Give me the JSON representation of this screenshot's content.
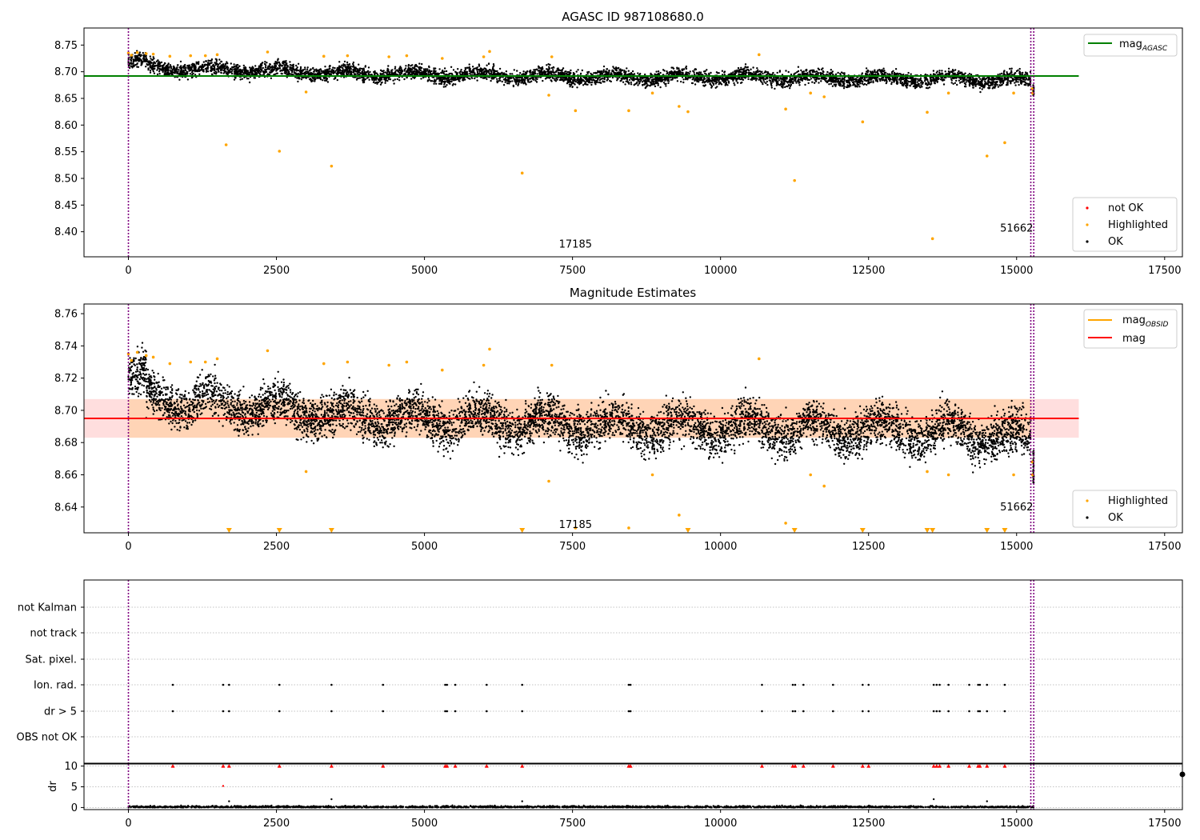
{
  "chart_data": [
    {
      "type": "scatter",
      "title": "AGASC ID 987108680.0",
      "xlabel": "",
      "ylabel": "",
      "xlim": [
        -750,
        17800
      ],
      "ylim": [
        8.353,
        8.782
      ],
      "xticks": [
        0,
        2500,
        5000,
        7500,
        10000,
        12500,
        15000,
        17500
      ],
      "xtick_labels": [
        "0",
        "2500",
        "5000",
        "7500",
        "10000",
        "12500",
        "15000",
        "17500"
      ],
      "yticks": [
        8.4,
        8.45,
        8.5,
        8.55,
        8.6,
        8.65,
        8.7,
        8.75
      ],
      "ytick_labels": [
        "8.40",
        "8.45",
        "8.50",
        "8.55",
        "8.60",
        "8.65",
        "8.70",
        "8.75"
      ],
      "vlines": [
        0,
        15240,
        15290
      ],
      "obsid_labels": [
        {
          "x": 7550,
          "y": 8.37,
          "text": "17185"
        },
        {
          "x": 15000,
          "y": 8.4,
          "text": "51662"
        }
      ],
      "mag_agasc": 8.692,
      "line_x_range": [
        -750,
        16050
      ],
      "ok_band": {
        "x": [
          0,
          2000,
          4000,
          6000,
          8000,
          10000,
          12000,
          14000,
          15240
        ],
        "center": [
          8.708,
          8.703,
          8.696,
          8.694,
          8.69,
          8.69,
          8.688,
          8.687,
          8.682
        ],
        "spread": [
          0.012,
          0.012,
          0.012,
          0.012,
          0.012,
          0.012,
          0.012,
          0.012,
          0.014
        ]
      },
      "highlighted": [
        [
          0,
          8.735
        ],
        [
          50,
          8.731
        ],
        [
          150,
          8.736
        ],
        [
          300,
          8.734
        ],
        [
          420,
          8.733
        ],
        [
          700,
          8.729
        ],
        [
          1050,
          8.73
        ],
        [
          1300,
          8.73
        ],
        [
          1500,
          8.732
        ],
        [
          1650,
          8.563
        ],
        [
          2350,
          8.737
        ],
        [
          2550,
          8.551
        ],
        [
          3000,
          8.662
        ],
        [
          3300,
          8.729
        ],
        [
          3430,
          8.523
        ],
        [
          3700,
          8.73
        ],
        [
          4400,
          8.728
        ],
        [
          4700,
          8.73
        ],
        [
          5300,
          8.725
        ],
        [
          6000,
          8.728
        ],
        [
          6100,
          8.738
        ],
        [
          6650,
          8.51
        ],
        [
          7100,
          8.656
        ],
        [
          7150,
          8.728
        ],
        [
          7550,
          8.627
        ],
        [
          8450,
          8.627
        ],
        [
          8850,
          8.66
        ],
        [
          9300,
          8.635
        ],
        [
          9450,
          8.625
        ],
        [
          10650,
          8.732
        ],
        [
          11100,
          8.63
        ],
        [
          11250,
          8.496
        ],
        [
          11520,
          8.66
        ],
        [
          11750,
          8.653
        ],
        [
          12400,
          8.606
        ],
        [
          13490,
          8.624
        ],
        [
          13580,
          8.387
        ],
        [
          13850,
          8.66
        ],
        [
          14500,
          8.542
        ],
        [
          14800,
          8.567
        ],
        [
          14950,
          8.66
        ],
        [
          15260,
          8.668
        ],
        [
          15270,
          8.66
        ]
      ],
      "legend": {
        "position": "top-right",
        "entries": [
          {
            "label": "mag",
            "sub": "AGASC",
            "color": "#008000"
          }
        ]
      },
      "legend_points": {
        "position": "bottom-right",
        "entries": [
          {
            "label": "not OK",
            "color": "#ff0000"
          },
          {
            "label": "Highlighted",
            "color": "#ffa500"
          },
          {
            "label": "OK",
            "color": "#000000"
          }
        ]
      }
    },
    {
      "type": "scatter",
      "title": "Magnitude Estimates",
      "xlabel": "",
      "ylabel": "",
      "xlim": [
        -750,
        17800
      ],
      "ylim": [
        8.624,
        8.766
      ],
      "xticks": [
        0,
        2500,
        5000,
        7500,
        10000,
        12500,
        15000,
        17500
      ],
      "xtick_labels": [
        "0",
        "2500",
        "5000",
        "7500",
        "10000",
        "12500",
        "15000",
        "17500"
      ],
      "yticks": [
        8.64,
        8.66,
        8.68,
        8.7,
        8.72,
        8.74,
        8.76
      ],
      "ytick_labels": [
        "8.64",
        "8.66",
        "8.68",
        "8.70",
        "8.72",
        "8.74",
        "8.76"
      ],
      "vlines": [
        0,
        15240,
        15290
      ],
      "obsid_labels": [
        {
          "x": 7550,
          "y": 8.627,
          "text": "17185"
        },
        {
          "x": 15000,
          "y": 8.638,
          "text": "51662"
        }
      ],
      "mag": 8.695,
      "mag_band": [
        8.683,
        8.707
      ],
      "line_x_range": [
        -750,
        16050
      ],
      "ok_band": {
        "x": [
          0,
          2000,
          4000,
          6000,
          8000,
          10000,
          12000,
          14000,
          15240
        ],
        "center": [
          8.708,
          8.703,
          8.696,
          8.694,
          8.69,
          8.69,
          8.688,
          8.687,
          8.682
        ],
        "spread": [
          0.012,
          0.012,
          0.012,
          0.012,
          0.012,
          0.012,
          0.012,
          0.012,
          0.014
        ]
      },
      "highlighted": [
        [
          0,
          8.735
        ],
        [
          50,
          8.731
        ],
        [
          150,
          8.736
        ],
        [
          300,
          8.734
        ],
        [
          420,
          8.733
        ],
        [
          700,
          8.729
        ],
        [
          1050,
          8.73
        ],
        [
          1300,
          8.73
        ],
        [
          1500,
          8.732
        ],
        [
          2350,
          8.737
        ],
        [
          3000,
          8.662
        ],
        [
          3300,
          8.729
        ],
        [
          3700,
          8.73
        ],
        [
          4400,
          8.728
        ],
        [
          4700,
          8.73
        ],
        [
          5300,
          8.725
        ],
        [
          6000,
          8.728
        ],
        [
          6100,
          8.738
        ],
        [
          7100,
          8.656
        ],
        [
          7150,
          8.728
        ],
        [
          7550,
          8.627
        ],
        [
          8450,
          8.627
        ],
        [
          8850,
          8.66
        ],
        [
          9300,
          8.635
        ],
        [
          10650,
          8.732
        ],
        [
          11100,
          8.63
        ],
        [
          11520,
          8.66
        ],
        [
          11750,
          8.653
        ],
        [
          13490,
          8.662
        ],
        [
          13850,
          8.66
        ],
        [
          14950,
          8.66
        ],
        [
          15260,
          8.668
        ],
        [
          15270,
          8.66
        ]
      ],
      "off_scale_markers_x": [
        1700,
        2550,
        3430,
        6650,
        9450,
        11250,
        12400,
        13490,
        13580,
        14500,
        14800
      ],
      "legend": {
        "position": "top-right",
        "entries": [
          {
            "label": "mag",
            "sub": "OBSID",
            "color": "#ffa500"
          },
          {
            "label": "mag",
            "sub": "",
            "color": "#ff0000"
          }
        ]
      },
      "legend_points": {
        "position": "bottom-right",
        "entries": [
          {
            "label": "Highlighted",
            "color": "#ffa500"
          },
          {
            "label": "OK",
            "color": "#000000"
          }
        ]
      }
    },
    {
      "type": "scatter",
      "title": "",
      "xlabel": "",
      "ylabel": "",
      "xlim": [
        -750,
        17800
      ],
      "categories": [
        "not Kalman",
        "not track",
        "Sat. pixel.",
        "Ion. rad.",
        "dr > 5",
        "OBS not OK"
      ],
      "vlines": [
        0,
        15240,
        15290
      ],
      "flag_x": [
        750,
        1600,
        1700,
        2550,
        3430,
        4300,
        5350,
        5380,
        5520,
        6050,
        6650,
        8450,
        8480,
        10700,
        11220,
        11260,
        11400,
        11900,
        12400,
        12500,
        13600,
        13650,
        13700,
        13850,
        14200,
        14350,
        14380,
        14500,
        14800
      ],
      "flags": {
        "Ion. rad.": "flag_x",
        "dr > 5": "flag_x"
      }
    },
    {
      "type": "scatter",
      "title": "",
      "xlabel": "",
      "ylabel": "dr",
      "xlim": [
        -750,
        17800
      ],
      "ylim": [
        -0.5,
        10.5
      ],
      "yticks": [
        0,
        5,
        10
      ],
      "ytick_labels": [
        "0",
        "5",
        "10"
      ],
      "xticks": [
        0,
        2500,
        5000,
        7500,
        10000,
        12500,
        15000,
        17500
      ],
      "xtick_labels": [
        "0",
        "2500",
        "5000",
        "7500",
        "10000",
        "12500",
        "15000",
        "17500"
      ],
      "vlines": [
        0,
        15240,
        15290
      ],
      "clipped_at": 10,
      "outliers": [
        [
          1600,
          5.2
        ],
        [
          1700,
          1.5
        ],
        [
          3430,
          2.0
        ],
        [
          6650,
          1.5
        ],
        [
          13600,
          2.0
        ],
        [
          14500,
          1.5
        ]
      ],
      "typical_dr_range": [
        0,
        0.6
      ]
    }
  ],
  "colors": {
    "ok": "#000000",
    "highlighted": "#ffa500",
    "not_ok": "#ff0000",
    "agasc": "#008000",
    "obsid": "#ffa500",
    "mag": "#ff0000",
    "vline": "#800080"
  }
}
